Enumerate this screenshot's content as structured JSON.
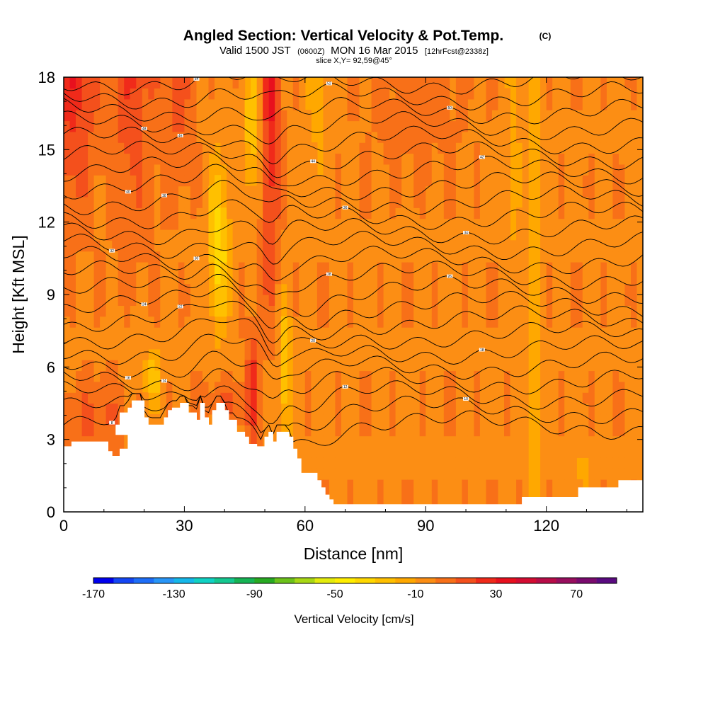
{
  "title": {
    "main": "Angled Section: Vertical Velocity & Pot.Temp.",
    "main_suffix": "(C)",
    "valid_a": "Valid 1500 JST",
    "valid_b": "(0600Z)",
    "valid_c": "MON 16 Mar 2015",
    "valid_d": "[12hrFcst@2338z]",
    "slice": "slice X,Y= 92,59@45°"
  },
  "chart_data": {
    "type": "heatmap",
    "xlabel": "Distance [nm]",
    "ylabel": "Height [Kft MSL]",
    "xlim": [
      0,
      144
    ],
    "ylim": [
      0,
      18
    ],
    "x_ticks": [
      0,
      30,
      60,
      90,
      120
    ],
    "y_ticks": [
      0,
      3,
      6,
      9,
      12,
      15,
      18
    ],
    "colorbar": {
      "label": "Vertical Velocity [cm/s]",
      "min": -170,
      "max": 90,
      "step": 10,
      "ticks": [
        -170,
        -130,
        -90,
        -50,
        -10,
        30,
        70
      ],
      "colors": [
        "#0000ee",
        "#1446f4",
        "#1e6ef8",
        "#2896f8",
        "#16b8ea",
        "#10d2c4",
        "#14c890",
        "#16b454",
        "#28aa22",
        "#6cc21a",
        "#a8d814",
        "#e4ec0c",
        "#ffee00",
        "#ffd800",
        "#ffc000",
        "#ffa800",
        "#fc8e14",
        "#f87018",
        "#f4501c",
        "#f02a1a",
        "#e8101e",
        "#d40c32",
        "#b80c48",
        "#980e5e",
        "#7a0a6e",
        "#5a0a80"
      ]
    },
    "terrain_kft": [
      [
        0,
        2.7
      ],
      [
        2,
        2.7
      ],
      [
        2,
        2.9
      ],
      [
        11,
        2.9
      ],
      [
        11,
        2.5
      ],
      [
        12,
        2.5
      ],
      [
        12,
        2.3
      ],
      [
        14,
        2.3
      ],
      [
        14,
        2.6
      ],
      [
        16,
        2.6
      ],
      [
        16,
        3.2
      ],
      [
        13,
        3.2
      ],
      [
        13,
        3.6
      ],
      [
        14,
        3.6
      ],
      [
        14,
        4.1
      ],
      [
        16,
        4.1
      ],
      [
        16,
        4.3
      ],
      [
        17,
        4.3
      ],
      [
        17,
        4.6
      ],
      [
        20,
        4.6
      ],
      [
        20,
        3.9
      ],
      [
        21,
        3.9
      ],
      [
        21,
        3.6
      ],
      [
        25,
        3.6
      ],
      [
        25,
        3.9
      ],
      [
        26,
        3.9
      ],
      [
        26,
        4.2
      ],
      [
        27,
        4.2
      ],
      [
        27,
        4.3
      ],
      [
        29,
        4.3
      ],
      [
        29,
        4.5
      ],
      [
        31,
        4.5
      ],
      [
        31,
        4.1
      ],
      [
        33,
        4.1
      ],
      [
        33,
        3.8
      ],
      [
        34,
        3.8
      ],
      [
        34,
        4.5
      ],
      [
        35,
        4.5
      ],
      [
        35,
        3.9
      ],
      [
        36,
        3.9
      ],
      [
        36,
        3.6
      ],
      [
        37,
        3.6
      ],
      [
        37,
        4.2
      ],
      [
        38,
        4.2
      ],
      [
        38,
        4.5
      ],
      [
        40,
        4.5
      ],
      [
        40,
        4.2
      ],
      [
        41,
        4.2
      ],
      [
        41,
        3.8
      ],
      [
        43,
        3.8
      ],
      [
        43,
        3.3
      ],
      [
        45,
        3.3
      ],
      [
        45,
        3.1
      ],
      [
        46,
        3.1
      ],
      [
        46,
        2.8
      ],
      [
        48,
        2.8
      ],
      [
        48,
        2.7
      ],
      [
        50,
        2.7
      ],
      [
        50,
        3.1
      ],
      [
        51,
        3.1
      ],
      [
        51,
        3.3
      ],
      [
        52,
        3.3
      ],
      [
        52,
        2.9
      ],
      [
        53,
        2.9
      ],
      [
        53,
        3.3
      ],
      [
        56,
        3.3
      ],
      [
        56,
        3.1
      ],
      [
        57,
        3.1
      ],
      [
        57,
        2.6
      ],
      [
        58,
        2.6
      ],
      [
        58,
        2.2
      ],
      [
        59,
        2.2
      ],
      [
        59,
        1.6
      ],
      [
        63,
        1.6
      ],
      [
        63,
        1.3
      ],
      [
        64,
        1.3
      ],
      [
        64,
        1.0
      ],
      [
        65,
        1.0
      ],
      [
        65,
        0.7
      ],
      [
        66,
        0.7
      ],
      [
        66,
        0.5
      ],
      [
        67,
        0.5
      ],
      [
        67,
        0.3
      ],
      [
        114,
        0.3
      ],
      [
        114,
        0.6
      ],
      [
        128,
        0.6
      ],
      [
        128,
        1.0
      ],
      [
        138,
        1.0
      ],
      [
        138,
        1.3
      ],
      [
        144,
        1.3
      ]
    ],
    "theta_contours_sample_c": [
      8,
      10,
      12,
      14,
      16,
      18,
      20,
      22,
      24,
      26,
      28,
      30,
      32,
      34,
      36,
      38,
      40,
      42,
      44,
      46,
      48,
      50,
      52,
      54
    ]
  }
}
